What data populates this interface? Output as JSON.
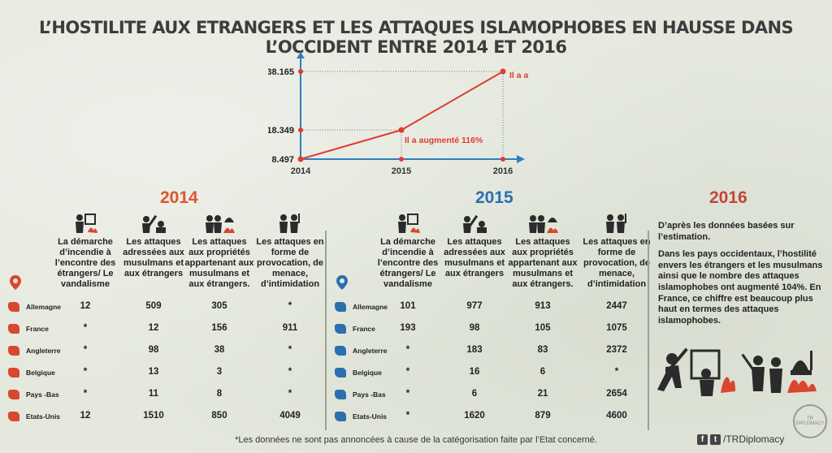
{
  "title": "L’HOSTILITE AUX ETRANGERS ET LES ATTAQUES ISLAMOPHOBES EN HAUSSE DANS L’OCCIDENT ENTRE 2014 ET 2016",
  "chart_data": {
    "type": "line",
    "x": [
      "2014",
      "2015",
      "2016"
    ],
    "y": [
      8497,
      18349,
      38165
    ],
    "y_tick_labels": [
      "8.497",
      "18.349",
      "38.165"
    ],
    "annotations": [
      "Il a augmenté 116%",
      "Il a augmenté 104%"
    ],
    "color": "#e03c30",
    "axis_color": "#2f7fc1"
  },
  "years": {
    "y2014": "2014",
    "y2015": "2015",
    "y2016": "2016"
  },
  "colors": {
    "y2014": "#e0532e",
    "y2015": "#2a6fae",
    "y2016": "#c2453a"
  },
  "headers": [
    "La démarche d’incendie à l’encontre des étrangers/ Le vandalisme",
    "Les attaques adressées aux musulmans et aux étrangers",
    "Les attaques aux propriétés appartenant aux musulmans et aux étrangers.",
    "Les attaques en forme de provocation, de menace, d’intimidation"
  ],
  "headers_2015": [
    "La démarche d’incendie à l’encontre des étrangers/ Le vandalisme",
    "Les attaques adressées aux musulmans et aux étrangers",
    "Les attaques aux propriétés appartenant aux musulmans et aux étrangers.",
    "Les attaques en forme de provocation, de menace, d’intimidation"
  ],
  "countries": [
    "Allemagne",
    "France",
    "Angleterre",
    "Belgique",
    "Pays -Bas",
    "Etats-Unis"
  ],
  "table_2014": [
    [
      "12",
      "509",
      "305",
      "*"
    ],
    [
      "*",
      "12",
      "156",
      "911"
    ],
    [
      "*",
      "98",
      "38",
      "*"
    ],
    [
      "*",
      "13",
      "3",
      "*"
    ],
    [
      "*",
      "11",
      "8",
      "*"
    ],
    [
      "12",
      "1510",
      "850",
      "4049"
    ]
  ],
  "table_2015": [
    [
      "101",
      "977",
      "913",
      "2447"
    ],
    [
      "193",
      "98",
      "105",
      "1075"
    ],
    [
      "*",
      "183",
      "83",
      "2372"
    ],
    [
      "*",
      "16",
      "6",
      "*"
    ],
    [
      "*",
      "6",
      "21",
      "2654"
    ],
    [
      "*",
      "1620",
      "879",
      "4600"
    ]
  ],
  "note_2016": [
    "D’après les données basées sur l’estimation.",
    "Dans les pays occidentaux, l’hostilité envers les étrangers et les musulmans ainsi que le nombre des attaques islamophobes ont augmenté 104%. En France, ce chiffre est beaucoup plus haut en termes des attaques islamophobes."
  ],
  "footnote": "*Les données ne sont pas annoncées à cause de la catégorisation faite par l’Etat concerné.",
  "social": {
    "handle": "/TRDiplomacy",
    "f": "f",
    "t": "t"
  },
  "seal_text": "TR DIPLOMACY",
  "icons": [
    "fire-vandal-icon",
    "attack-person-icon",
    "property-attack-icon",
    "threat-icon",
    "location-pin-icon"
  ]
}
